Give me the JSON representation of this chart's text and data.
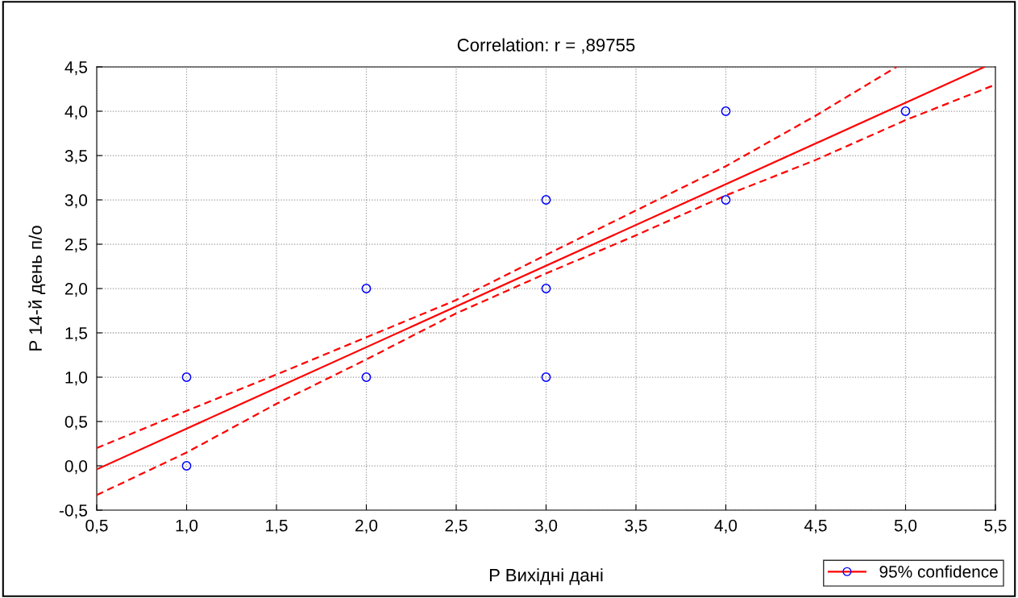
{
  "chart_data": {
    "type": "scatter",
    "title": "Correlation: r = ,89755",
    "xlabel": "P Вихідні дані",
    "ylabel": "P 14-й день п/о",
    "x": [
      1,
      1,
      2,
      2,
      3,
      3,
      3,
      4,
      4,
      5
    ],
    "series": [
      {
        "color": "#0000ff",
        "marker": "circle",
        "values": [
          1,
          0,
          2,
          1,
          3,
          2,
          1,
          4,
          3,
          4
        ]
      },
      {
        "type": "line",
        "name": "95% confidence",
        "color": "#ff0000",
        "line_style": "solid",
        "x": [
          0.5,
          5.44
        ],
        "values": [
          -0.04,
          4.5
        ]
      },
      {
        "type": "line",
        "color": "#ff0000",
        "line_style": "dashed",
        "x": [
          0.5,
          1,
          1.5,
          2,
          2.5,
          3,
          3.5,
          4,
          4.5,
          4.95
        ],
        "values": [
          0.2,
          0.62,
          1.03,
          1.45,
          1.87,
          2.38,
          2.88,
          3.38,
          3.95,
          4.5
        ]
      },
      {
        "type": "line",
        "color": "#ff0000",
        "line_style": "dashed",
        "x": [
          0.5,
          1,
          1.5,
          2,
          2.5,
          3,
          3.5,
          4,
          4.5,
          5,
          5.5
        ],
        "values": [
          -0.33,
          0.15,
          0.7,
          1.2,
          1.72,
          2.17,
          2.6,
          3.05,
          3.45,
          3.9,
          4.3
        ]
      }
    ],
    "xlim": [
      0.5,
      5.5
    ],
    "ylim": [
      -0.5,
      4.5
    ],
    "xticks": [
      {
        "value": 0.5,
        "label": "0,5"
      },
      {
        "value": 1,
        "label": "1,0"
      },
      {
        "value": 1.5,
        "label": "1,5"
      },
      {
        "value": 2,
        "label": "2,0"
      },
      {
        "value": 2.5,
        "label": "2,5"
      },
      {
        "value": 3,
        "label": "3,0"
      },
      {
        "value": 3.5,
        "label": "3,5"
      },
      {
        "value": 4,
        "label": "4,0"
      },
      {
        "value": 4.5,
        "label": "4,5"
      },
      {
        "value": 5,
        "label": "5,0"
      },
      {
        "value": 5.5,
        "label": "5,5"
      }
    ],
    "yticks": [
      {
        "value": -0.5,
        "label": "-0,5"
      },
      {
        "value": 0,
        "label": "0,0"
      },
      {
        "value": 0.5,
        "label": "0,5"
      },
      {
        "value": 1,
        "label": "1,0"
      },
      {
        "value": 1.5,
        "label": "1,5"
      },
      {
        "value": 2,
        "label": "2,0"
      },
      {
        "value": 2.5,
        "label": "2,5"
      },
      {
        "value": 3,
        "label": "3,0"
      },
      {
        "value": 3.5,
        "label": "3,5"
      },
      {
        "value": 4,
        "label": "4,0"
      },
      {
        "value": 4.5,
        "label": "4,5"
      }
    ],
    "grid": true,
    "legend": "bottom right"
  }
}
